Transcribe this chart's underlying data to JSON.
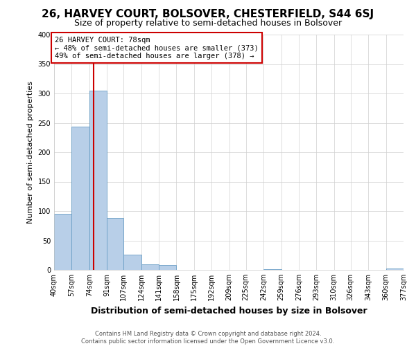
{
  "title": "26, HARVEY COURT, BOLSOVER, CHESTERFIELD, S44 6SJ",
  "subtitle": "Size of property relative to semi-detached houses in Bolsover",
  "xlabel": "Distribution of semi-detached houses by size in Bolsover",
  "ylabel": "Number of semi-detached properties",
  "bin_edges": [
    40,
    57,
    74,
    91,
    107,
    124,
    141,
    158,
    175,
    192,
    209,
    225,
    242,
    259,
    276,
    293,
    310,
    326,
    343,
    360,
    377
  ],
  "bin_counts": [
    95,
    243,
    305,
    88,
    26,
    9,
    8,
    0,
    0,
    0,
    0,
    0,
    1,
    0,
    0,
    0,
    0,
    0,
    0,
    2
  ],
  "bar_color": "#b8cfe8",
  "bar_edge_color": "#6a9ec5",
  "property_size": 78,
  "marker_line_color": "#cc0000",
  "annotation_title": "26 HARVEY COURT: 78sqm",
  "annotation_line1": "← 48% of semi-detached houses are smaller (373)",
  "annotation_line2": "49% of semi-detached houses are larger (378) →",
  "annotation_box_color": "#ffffff",
  "annotation_box_edge": "#cc0000",
  "ylim": [
    0,
    400
  ],
  "yticks": [
    0,
    50,
    100,
    150,
    200,
    250,
    300,
    350,
    400
  ],
  "tick_labels": [
    "40sqm",
    "57sqm",
    "74sqm",
    "91sqm",
    "107sqm",
    "124sqm",
    "141sqm",
    "158sqm",
    "175sqm",
    "192sqm",
    "209sqm",
    "225sqm",
    "242sqm",
    "259sqm",
    "276sqm",
    "293sqm",
    "310sqm",
    "326sqm",
    "343sqm",
    "360sqm",
    "377sqm"
  ],
  "footer_line1": "Contains HM Land Registry data © Crown copyright and database right 2024.",
  "footer_line2": "Contains public sector information licensed under the Open Government Licence v3.0.",
  "background_color": "#ffffff",
  "grid_color": "#d0d0d0",
  "title_fontsize": 11,
  "subtitle_fontsize": 9
}
